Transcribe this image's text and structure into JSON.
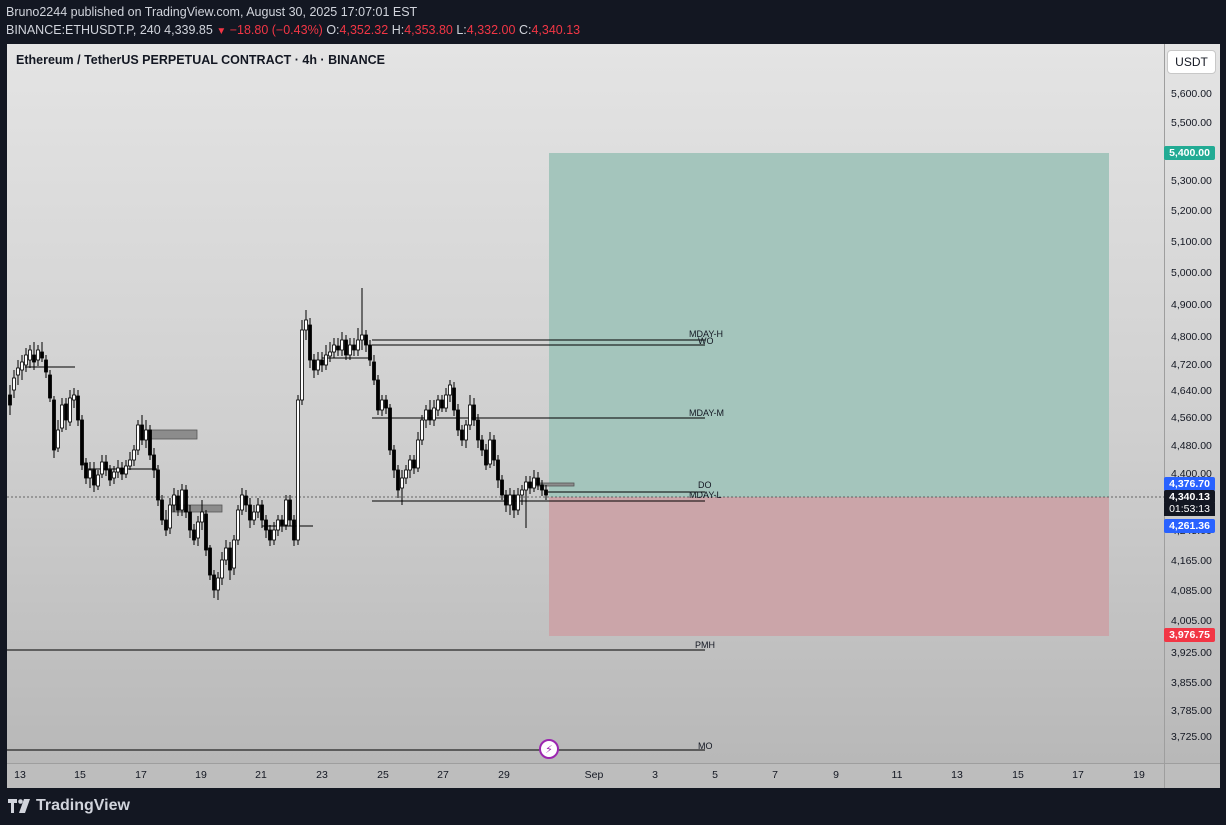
{
  "header": {
    "published": "Bruno2244 published on TradingView.com, August 30, 2025 17:07:01 EST",
    "symbol": "BINANCE:ETHUSDT.P, 240",
    "last": "4,339.85",
    "change": "−18.80 (−0.43%)",
    "open_label": "O:",
    "open": "4,352.32",
    "high_label": "H:",
    "high": "4,353.80",
    "low_label": "L:",
    "low": "4,332.00",
    "close_label": "C:",
    "close": "4,340.13"
  },
  "chart": {
    "title": "Ethereum / TetherUS PERPETUAL CONTRACT · 4h · BINANCE",
    "currency_button": "USDT"
  },
  "price_axis": {
    "ticks": [
      "5,600.00",
      "5,500.00",
      "5,400.00",
      "5,300.00",
      "5,200.00",
      "5,100.00",
      "5,000.00",
      "4,900.00",
      "4,800.00",
      "4,720.00",
      "4,640.00",
      "4,560.00",
      "4,480.00",
      "4,400.00",
      "4,245.00",
      "4,165.00",
      "4,085.00",
      "4,005.00",
      "3,925.00",
      "3,855.00",
      "3,785.00",
      "3,725.00"
    ],
    "badges": {
      "target": "5,400.00",
      "entry": "4,376.70",
      "last": "4,340.13",
      "countdown": "01:53:13",
      "stop_ref": "4,261.36",
      "stop": "3,976.75"
    }
  },
  "time_axis": {
    "ticks": [
      "13",
      "15",
      "17",
      "19",
      "21",
      "23",
      "25",
      "27",
      "29",
      "Sep",
      "3",
      "5",
      "7",
      "9",
      "11",
      "13",
      "15",
      "17",
      "19"
    ]
  },
  "levels": {
    "mday_h": "MDAY-H",
    "wo": "WO",
    "mday_m": "MDAY-M",
    "do": "DO",
    "mday_l": "MDAY-L",
    "pmh": "PMH",
    "mo": "MO"
  },
  "colors": {
    "bg": "#131722",
    "profit_zone": "#a4c5bc",
    "loss_zone": "#cba5a9",
    "target_badge": "#22ab94",
    "entry_badge": "#2962ff",
    "stop_badge": "#f23645",
    "candle": "#000000"
  },
  "footer": {
    "brand": "TradingView"
  },
  "icons": {
    "bolt": "lightning-icon",
    "logo": "tradingview-logo-icon"
  }
}
